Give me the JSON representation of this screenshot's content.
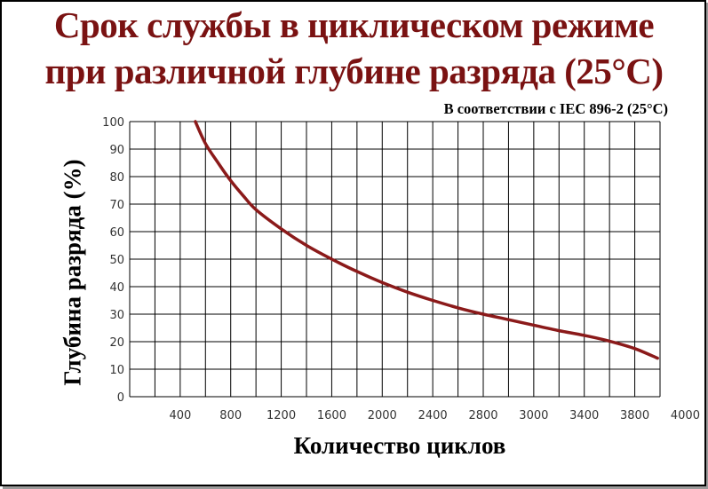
{
  "chart_data": {
    "type": "line",
    "title": "Срок службы в циклическом режиме",
    "title_line2": "при различной глубине разряда  (25°C)",
    "subtitle": "В соответствии с IEC 896-2 (25°C)",
    "xlabel": "Количество циклов",
    "ylabel": "Глубина разряда (%)",
    "xlim": [
      0,
      4200
    ],
    "ylim": [
      0,
      100
    ],
    "x_tick_labels": [
      "400",
      "800",
      "1200",
      "1600",
      "2000",
      "2400",
      "2800",
      "3000",
      "3400",
      "3800",
      "4000"
    ],
    "y_tick_labels": [
      "0",
      "10",
      "20",
      "30",
      "40",
      "50",
      "60",
      "70",
      "80",
      "90",
      "100"
    ],
    "grid": true,
    "line_color": "#8b1a1a",
    "title_color": "#7a1212",
    "series": [
      {
        "x": [
          520,
          600,
          700,
          800,
          900,
          1000,
          1200,
          1400,
          1600,
          1800,
          2000,
          2200,
          2400,
          2600,
          2800,
          3000,
          3200,
          3400,
          3600,
          3800,
          4000,
          4180
        ],
        "y": [
          100,
          92,
          85,
          78.5,
          73,
          68,
          61,
          55,
          50,
          45.5,
          41.5,
          38,
          35,
          32.3,
          30,
          28,
          26,
          24,
          22.3,
          20.2,
          17.5,
          14
        ]
      }
    ]
  }
}
